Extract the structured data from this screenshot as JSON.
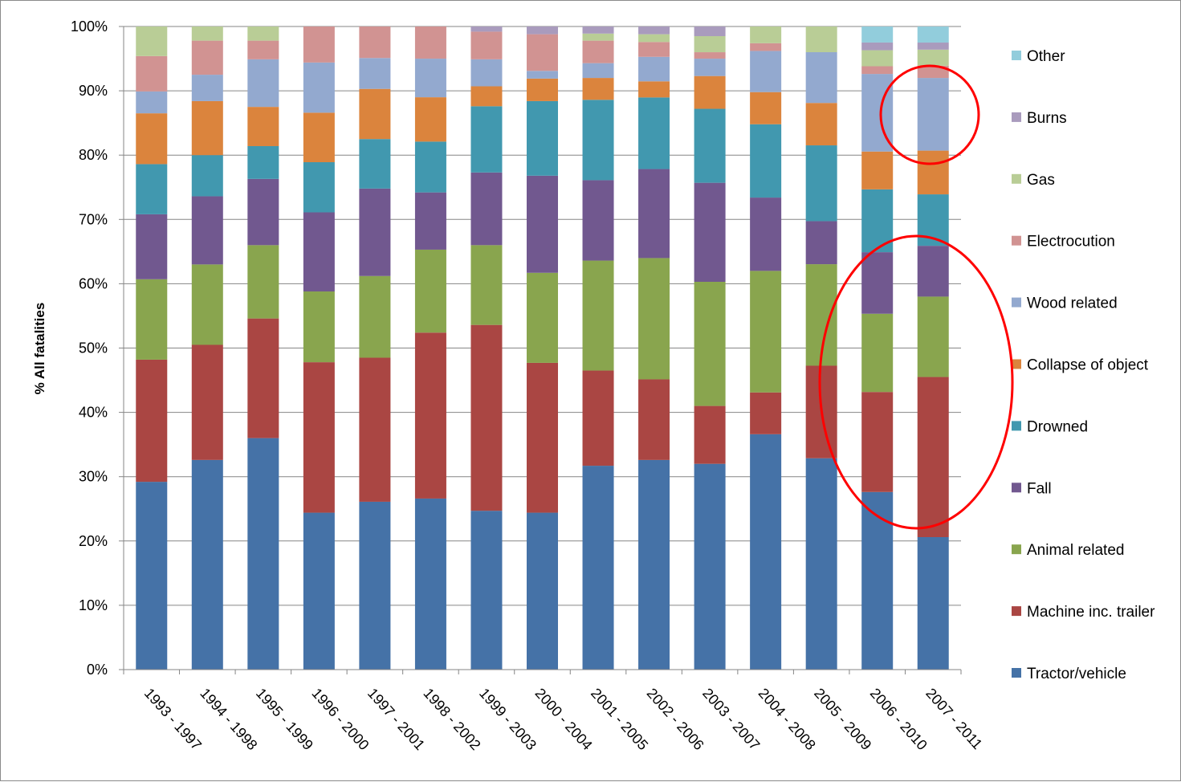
{
  "chart_data": {
    "type": "bar",
    "stacked": true,
    "percent_stacked": true,
    "ylabel": "% All fatalities",
    "xlabel": "",
    "ylim": [
      0,
      100
    ],
    "y_ticks": [
      "0%",
      "10%",
      "20%",
      "30%",
      "40%",
      "50%",
      "60%",
      "70%",
      "80%",
      "90%",
      "100%"
    ],
    "grid": "horizontal",
    "legend_position": "right",
    "categories": [
      "1993 - 1997",
      "1994 - 1998",
      "1995 - 1999",
      "1996 - 2000",
      "1997 - 2001",
      "1998 - 2002",
      "1999 - 2003",
      "2000 - 2004",
      "2001 - 2005",
      "2002 - 2006",
      "2003 - 2007",
      "2004 - 2008",
      "2005 - 2009",
      "2006 - 2010",
      "2007 - 2011"
    ],
    "series": [
      {
        "name": "Tractor/vehicle",
        "color": "#4572A7",
        "values": [
          29.2,
          32.6,
          36.0,
          24.4,
          26.1,
          26.6,
          24.7,
          24.4,
          31.7,
          32.5,
          32.0,
          36.6,
          32.9,
          27.7,
          20.6
        ]
      },
      {
        "name": "Machine inc. trailer",
        "color": "#AA4643",
        "values": [
          19.0,
          17.9,
          18.6,
          23.4,
          22.4,
          25.8,
          28.9,
          23.3,
          14.8,
          12.5,
          9.0,
          6.5,
          14.4,
          15.6,
          24.9
        ]
      },
      {
        "name": "Animal related",
        "color": "#89A54E",
        "values": [
          12.5,
          12.5,
          11.4,
          11.0,
          12.7,
          12.9,
          12.4,
          14.0,
          17.1,
          18.8,
          19.3,
          18.9,
          15.8,
          12.2,
          12.5
        ]
      },
      {
        "name": "Fall",
        "color": "#71588F",
        "values": [
          10.1,
          10.6,
          10.3,
          12.3,
          13.6,
          8.9,
          11.3,
          15.1,
          12.5,
          13.8,
          15.4,
          11.4,
          6.7,
          9.6,
          7.9
        ]
      },
      {
        "name": "Drowned",
        "color": "#4198AF",
        "values": [
          7.8,
          6.4,
          5.1,
          7.8,
          7.7,
          7.9,
          10.3,
          11.6,
          12.5,
          11.1,
          11.5,
          11.4,
          11.8,
          9.8,
          8.0
        ]
      },
      {
        "name": "Collapse of object",
        "color": "#DB843D",
        "values": [
          7.9,
          8.4,
          6.1,
          7.7,
          7.8,
          6.9,
          3.1,
          3.5,
          3.4,
          2.5,
          5.1,
          5.0,
          6.6,
          5.9,
          6.8
        ]
      },
      {
        "name": "Wood related",
        "color": "#93A9CF",
        "values": [
          3.4,
          4.1,
          7.4,
          7.8,
          4.8,
          6.0,
          4.2,
          1.2,
          2.3,
          3.8,
          2.7,
          6.4,
          7.9,
          12.1,
          11.3
        ]
      },
      {
        "name": "Electrocution",
        "color": "#D19392",
        "values": [
          5.5,
          5.3,
          2.9,
          5.6,
          4.9,
          5.0,
          4.3,
          5.7,
          3.5,
          2.3,
          1.0,
          1.2,
          0.0,
          1.2,
          1.9
        ]
      },
      {
        "name": "Gas",
        "color": "#B9CD96",
        "values": [
          4.6,
          2.2,
          2.2,
          0.0,
          0.0,
          0.0,
          0.0,
          0.0,
          1.1,
          1.2,
          2.5,
          2.6,
          4.0,
          2.5,
          2.5
        ]
      },
      {
        "name": "Burns",
        "color": "#A99BBD",
        "values": [
          0.0,
          0.0,
          0.0,
          0.0,
          0.0,
          0.0,
          0.8,
          1.2,
          1.1,
          1.2,
          1.5,
          0.0,
          0.0,
          1.2,
          1.1
        ]
      },
      {
        "name": "Other",
        "color": "#92CDDC",
        "values": [
          0.0,
          0.0,
          0.0,
          0.0,
          0.0,
          0.0,
          0.0,
          0.0,
          0.0,
          0.0,
          0.0,
          0.0,
          0.0,
          2.5,
          2.5
        ]
      }
    ],
    "annotations": [
      {
        "shape": "ellipse",
        "color": "#FF0000",
        "target": "2006 - 2010 and 2007 - 2011, lower segments"
      },
      {
        "shape": "ellipse",
        "color": "#FF0000",
        "target": "2007 - 2011, Wood related segment"
      }
    ]
  }
}
